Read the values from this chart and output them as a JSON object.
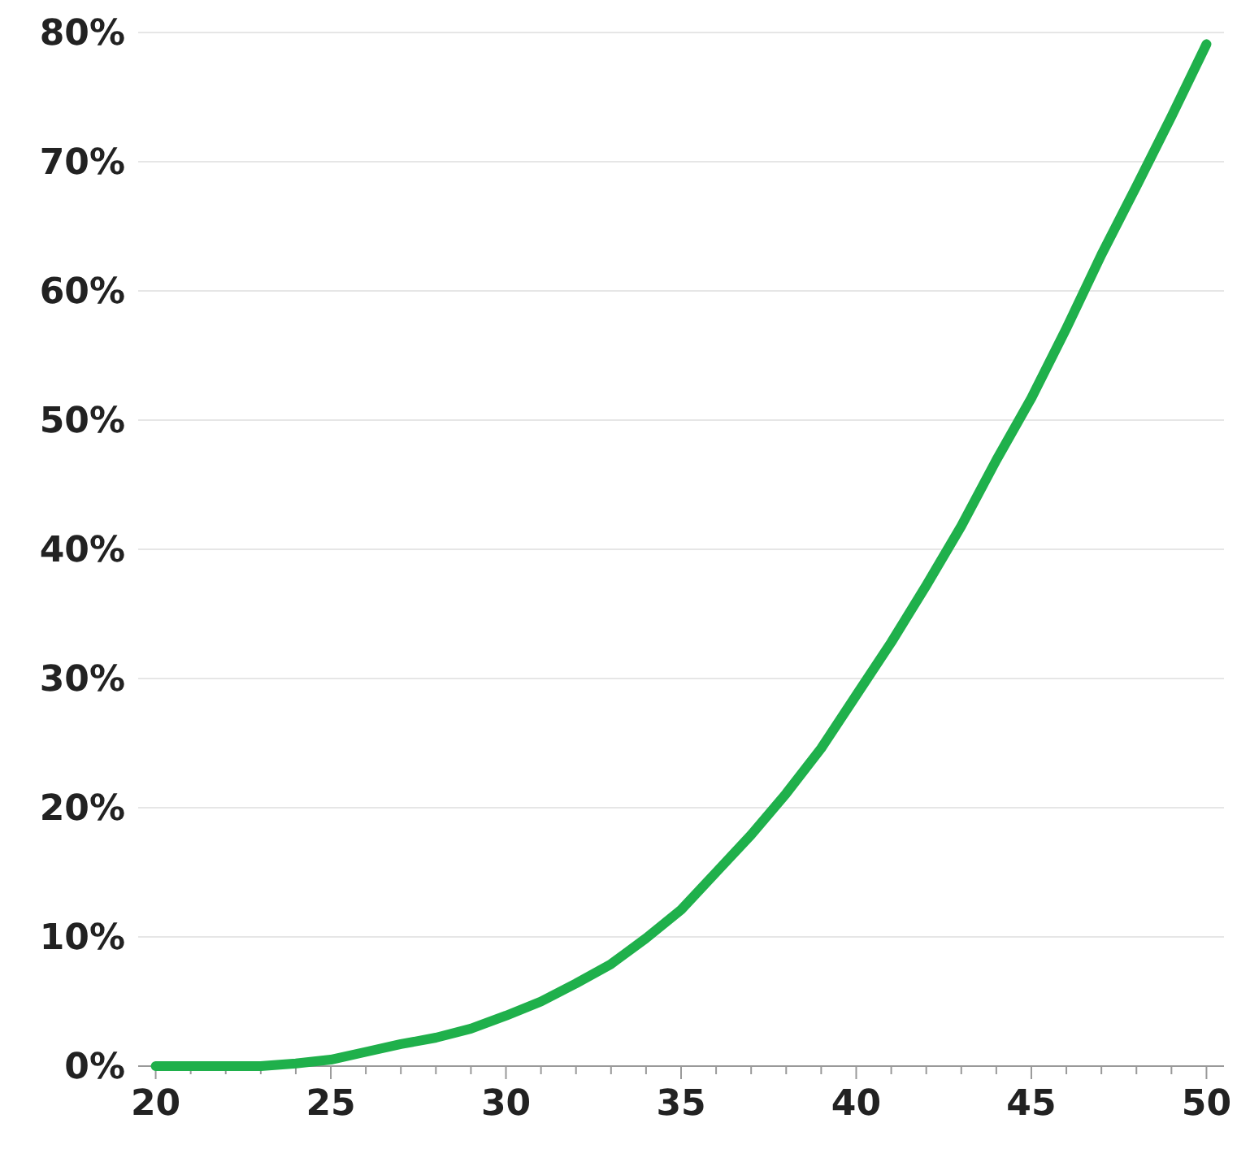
{
  "chart_data": {
    "type": "line",
    "x": [
      20,
      21,
      22,
      23,
      24,
      25,
      26,
      27,
      28,
      29,
      30,
      31,
      32,
      33,
      34,
      35,
      36,
      37,
      38,
      39,
      40,
      41,
      42,
      43,
      44,
      45,
      46,
      47,
      48,
      49,
      50
    ],
    "series": [
      {
        "color": "#1fb04b",
        "values": [
          0,
          0,
          0,
          0,
          0.2,
          0.5,
          1.1,
          1.7,
          2.2,
          2.9,
          3.9,
          5.0,
          6.4,
          7.9,
          9.9,
          12.1,
          15.0,
          17.9,
          21.1,
          24.6,
          28.7,
          32.8,
          37.2,
          41.8,
          46.9,
          51.7,
          57.1,
          62.8,
          68.1,
          73.5,
          79.1
        ]
      }
    ],
    "xlim": [
      19.5,
      50.5
    ],
    "xticks": [
      20,
      {
        "value": 21,
        "label": null
      },
      {
        "value": 22,
        "label": null
      },
      {
        "value": 23,
        "label": null
      },
      {
        "value": 24,
        "label": null
      },
      25,
      {
        "value": 26,
        "label": null
      },
      {
        "value": 27,
        "label": null
      },
      {
        "value": 28,
        "label": null
      },
      {
        "value": 29,
        "label": null
      },
      30,
      {
        "value": 31,
        "label": null
      },
      {
        "value": 32,
        "label": null
      },
      {
        "value": 33,
        "label": null
      },
      {
        "value": 34,
        "label": null
      },
      35,
      {
        "value": 36,
        "label": null
      },
      {
        "value": 37,
        "label": null
      },
      {
        "value": 38,
        "label": null
      },
      {
        "value": 39,
        "label": null
      },
      40,
      {
        "value": 41,
        "label": null
      },
      {
        "value": 42,
        "label": null
      },
      {
        "value": 43,
        "label": null
      },
      {
        "value": 44,
        "label": null
      },
      45,
      {
        "value": 46,
        "label": null
      },
      {
        "value": 47,
        "label": null
      },
      {
        "value": 48,
        "label": null
      },
      {
        "value": 49,
        "label": null
      },
      50
    ],
    "ylim": [
      0,
      80
    ],
    "yticks": [
      {
        "value": 0,
        "label": "0%"
      },
      {
        "value": 10,
        "label": "10%"
      },
      {
        "value": 20,
        "label": "20%"
      },
      {
        "value": 30,
        "label": "30%"
      },
      {
        "value": 40,
        "label": "40%"
      },
      {
        "value": 50,
        "label": "50%"
      },
      {
        "value": 60,
        "label": "60%"
      },
      {
        "value": 70,
        "label": "70%"
      },
      {
        "value": 80,
        "label": "80%"
      }
    ],
    "grid": "y",
    "line_style": "solid",
    "marker": "none"
  }
}
